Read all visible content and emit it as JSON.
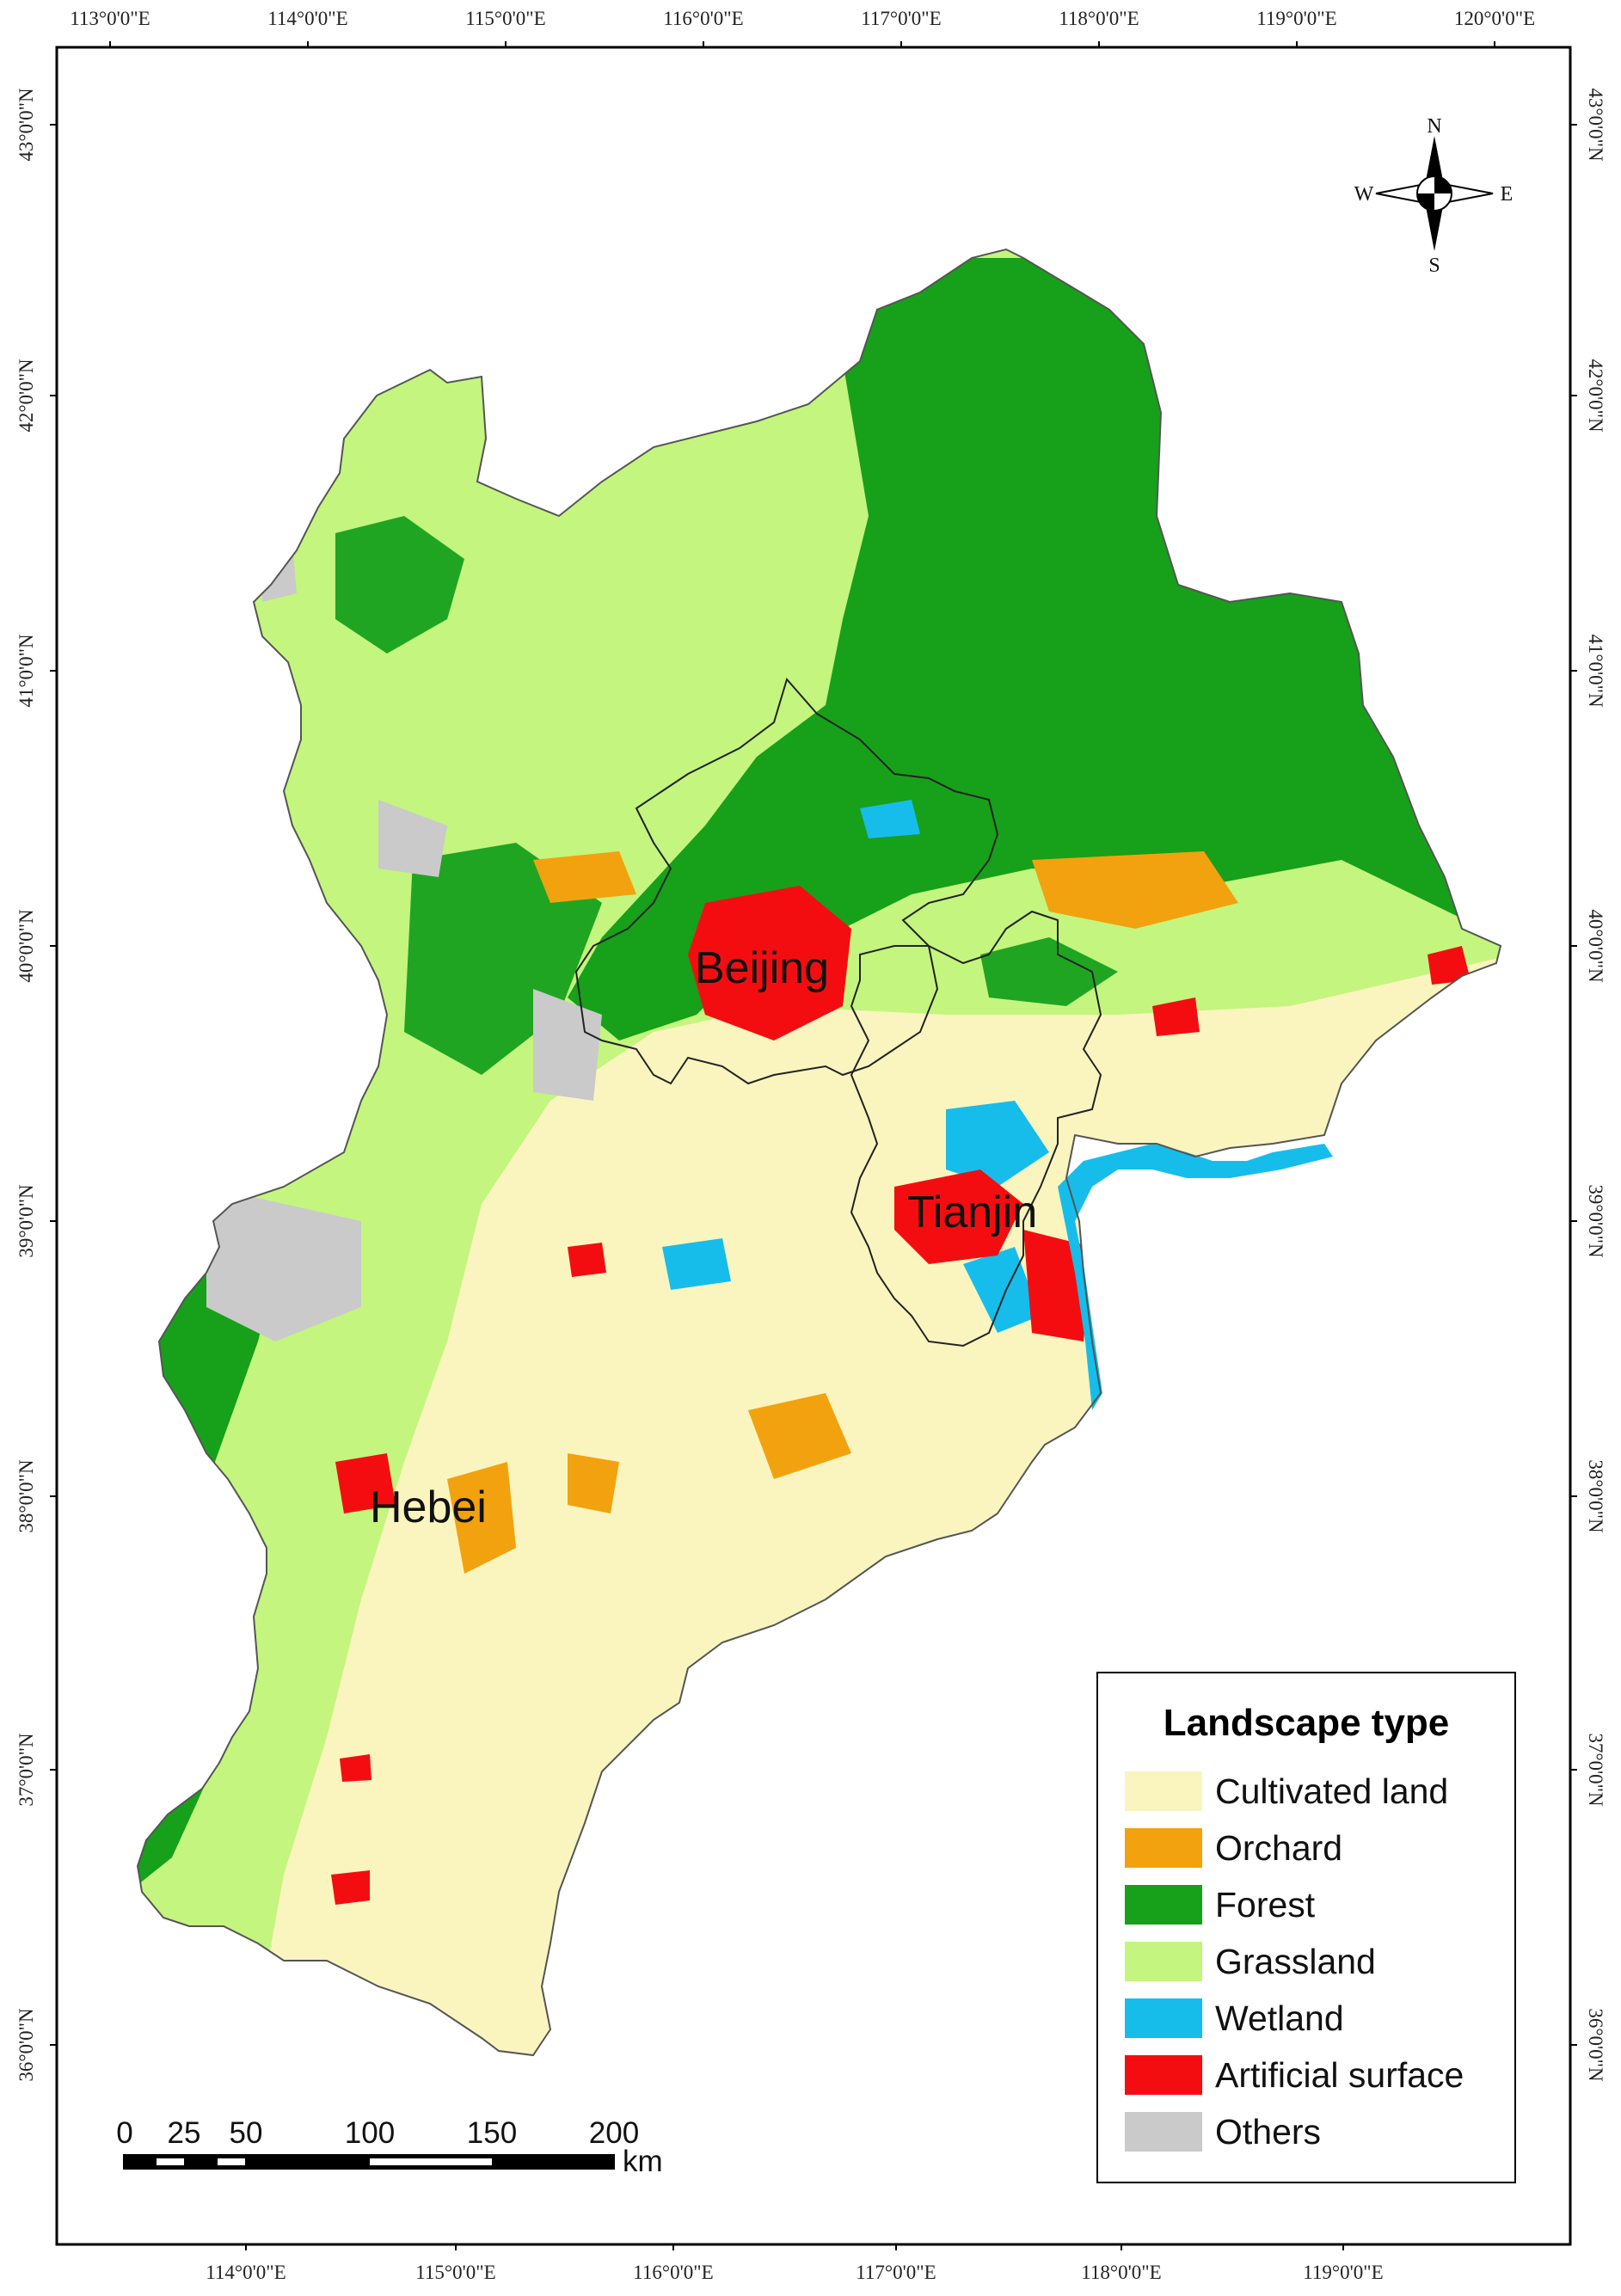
{
  "map": {
    "top_ticks": [
      "113°0'0\"E",
      "114°0'0\"E",
      "115°0'0\"E",
      "116°0'0\"E",
      "117°0'0\"E",
      "118°0'0\"E",
      "119°0'0\"E",
      "120°0'0\"E"
    ],
    "bottom_ticks": [
      "114°0'0\"E",
      "115°0'0\"E",
      "116°0'0\"E",
      "117°0'0\"E",
      "118°0'0\"E",
      "119°0'0\"E"
    ],
    "left_ticks": [
      "43°0'0\"N",
      "42°0'0\"N",
      "41°0'0\"N",
      "40°0'0\"N",
      "39°0'0\"N",
      "38°0'0\"N",
      "37°0'0\"N",
      "36°0'0\"N"
    ],
    "right_ticks": [
      "43°0'0\"N",
      "42°0'0\"N",
      "41°0'0\"N",
      "40°0'0\"N",
      "39°0'0\"N",
      "38°0'0\"N",
      "37°0'0\"N",
      "36°0'0\"N"
    ],
    "city_labels": {
      "beijing": "Beijing",
      "tianjin": "Tianjin",
      "hebei": "Hebei"
    },
    "compass": {
      "n": "N",
      "s": "S",
      "e": "E",
      "w": "W"
    },
    "scale_bar": {
      "labels": [
        "0",
        "25",
        "50",
        "100",
        "150",
        "200"
      ],
      "unit": "km"
    },
    "legend": {
      "title": "Landscape type",
      "items": [
        {
          "label": "Cultivated land",
          "color": "#FAF5BE"
        },
        {
          "label": "Orchard",
          "color": "#F2A20E"
        },
        {
          "label": "Forest",
          "color": "#17A01A"
        },
        {
          "label": "Grassland",
          "color": "#C4F57E"
        },
        {
          "label": "Wetland",
          "color": "#16BDEB"
        },
        {
          "label": "Artificial surface",
          "color": "#F40D10"
        },
        {
          "label": "Others",
          "color": "#CACACA"
        }
      ]
    }
  }
}
